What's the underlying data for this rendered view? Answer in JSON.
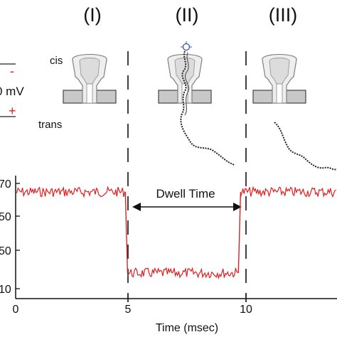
{
  "stages": [
    "(I)",
    "(II)",
    "(III)"
  ],
  "bias": {
    "cis_label": "cis",
    "trans_label": "trans",
    "voltage_label": "0 mV",
    "minus_sign": "-",
    "plus_sign": "+",
    "minus_color": "#e02020",
    "plus_color": "#e02020"
  },
  "dwell_label": "Dwell Time",
  "chart_data": {
    "type": "line",
    "xlabel": "Time (msec)",
    "ylabel": "",
    "x_ticks": [
      "0",
      "5",
      "10"
    ],
    "y_ticks": [
      "70",
      "50",
      "50",
      "10"
    ],
    "xlim": [
      0,
      14.5
    ],
    "series": [
      {
        "color": "#e02020",
        "segments": [
          {
            "x_start": 0,
            "x_end": 4.95,
            "level": "open-pore",
            "approx_pixel_row": "high"
          },
          {
            "x_start": 5.05,
            "x_end": 10.05,
            "level": "blocked"
          },
          {
            "x_start": 10.15,
            "x_end": 14.5,
            "level": "open-pore"
          }
        ]
      }
    ],
    "events": [
      {
        "x": 5
      },
      {
        "x": 10.1
      }
    ]
  }
}
